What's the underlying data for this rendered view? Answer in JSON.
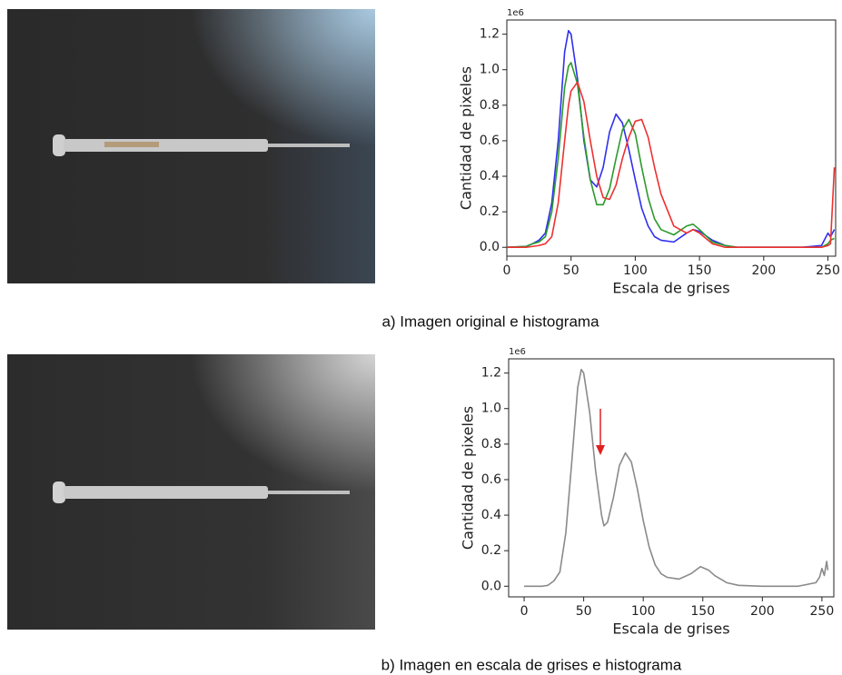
{
  "captions": [
    "a) Imagen original e histograma",
    "b) Imagen en escala de grises e histograma"
  ],
  "chart_data": [
    {
      "type": "line",
      "x_label": "Escala de grises",
      "y_label": "Cantidad de pixeles",
      "offset_label": "1e6",
      "xlim": [
        0,
        256
      ],
      "ylim": [
        -0.05,
        1.28
      ],
      "xticks": [
        0,
        50,
        100,
        150,
        200,
        250
      ],
      "yticks": [
        {
          "value": 0,
          "label": "0.0"
        },
        0.2,
        0.4,
        0.6,
        0.8,
        {
          "value": 1,
          "label": "1.0"
        },
        1.2
      ],
      "x": [
        0,
        15,
        20,
        25,
        30,
        35,
        40,
        45,
        48,
        50,
        55,
        60,
        65,
        70,
        75,
        80,
        85,
        90,
        95,
        100,
        105,
        110,
        115,
        120,
        130,
        140,
        145,
        150,
        160,
        170,
        180,
        200,
        230,
        245,
        250,
        252,
        255
      ],
      "series": [
        {
          "color": "#2f2ff0",
          "values": [
            0,
            0.005,
            0.02,
            0.04,
            0.08,
            0.25,
            0.6,
            1.1,
            1.22,
            1.2,
            0.95,
            0.6,
            0.38,
            0.34,
            0.45,
            0.65,
            0.75,
            0.7,
            0.55,
            0.38,
            0.22,
            0.12,
            0.06,
            0.04,
            0.03,
            0.08,
            0.1,
            0.09,
            0.04,
            0.01,
            0,
            0,
            0,
            0.01,
            0.08,
            0.06,
            0.1
          ]
        },
        {
          "color": "#2a9a2a",
          "values": [
            0,
            0.005,
            0.02,
            0.03,
            0.06,
            0.2,
            0.5,
            0.9,
            1.02,
            1.04,
            0.92,
            0.62,
            0.38,
            0.24,
            0.24,
            0.33,
            0.5,
            0.66,
            0.72,
            0.64,
            0.45,
            0.28,
            0.16,
            0.1,
            0.07,
            0.12,
            0.13,
            0.1,
            0.03,
            0.01,
            0,
            0,
            0,
            0,
            0.02,
            0.04,
            0.05
          ]
        },
        {
          "color": "#ee3030",
          "values": [
            0,
            0,
            0.005,
            0.01,
            0.02,
            0.06,
            0.25,
            0.6,
            0.8,
            0.88,
            0.93,
            0.82,
            0.6,
            0.4,
            0.28,
            0.27,
            0.35,
            0.5,
            0.62,
            0.71,
            0.72,
            0.62,
            0.45,
            0.3,
            0.12,
            0.08,
            0.1,
            0.08,
            0.02,
            0,
            0,
            0,
            0,
            0,
            0.01,
            0.02,
            0.45
          ]
        }
      ]
    },
    {
      "type": "line",
      "x_label": "Escala de grises",
      "y_label": "Cantidad de pixeles",
      "offset_label": "1e6",
      "xlim": [
        -13,
        260
      ],
      "ylim": [
        -0.06,
        1.28
      ],
      "xticks": [
        0,
        50,
        100,
        150,
        200,
        250
      ],
      "yticks": [
        {
          "value": 0,
          "label": "0.0"
        },
        0.2,
        0.4,
        0.6,
        0.8,
        {
          "value": 1,
          "label": "1.0"
        },
        1.2
      ],
      "x": [
        0,
        15,
        20,
        25,
        30,
        35,
        40,
        45,
        48,
        50,
        55,
        60,
        65,
        67,
        70,
        75,
        80,
        85,
        90,
        95,
        100,
        105,
        110,
        115,
        120,
        130,
        140,
        148,
        155,
        160,
        170,
        180,
        200,
        230,
        245,
        248,
        250,
        252,
        254,
        255
      ],
      "series": [
        {
          "color": "#8a8a8a",
          "values": [
            0,
            0,
            0.005,
            0.03,
            0.08,
            0.3,
            0.7,
            1.12,
            1.22,
            1.2,
            0.98,
            0.65,
            0.4,
            0.34,
            0.36,
            0.5,
            0.68,
            0.75,
            0.7,
            0.55,
            0.37,
            0.22,
            0.12,
            0.07,
            0.05,
            0.04,
            0.07,
            0.11,
            0.09,
            0.06,
            0.02,
            0.005,
            0,
            0,
            0.02,
            0.05,
            0.1,
            0.06,
            0.14,
            0.09
          ]
        }
      ]
    }
  ]
}
